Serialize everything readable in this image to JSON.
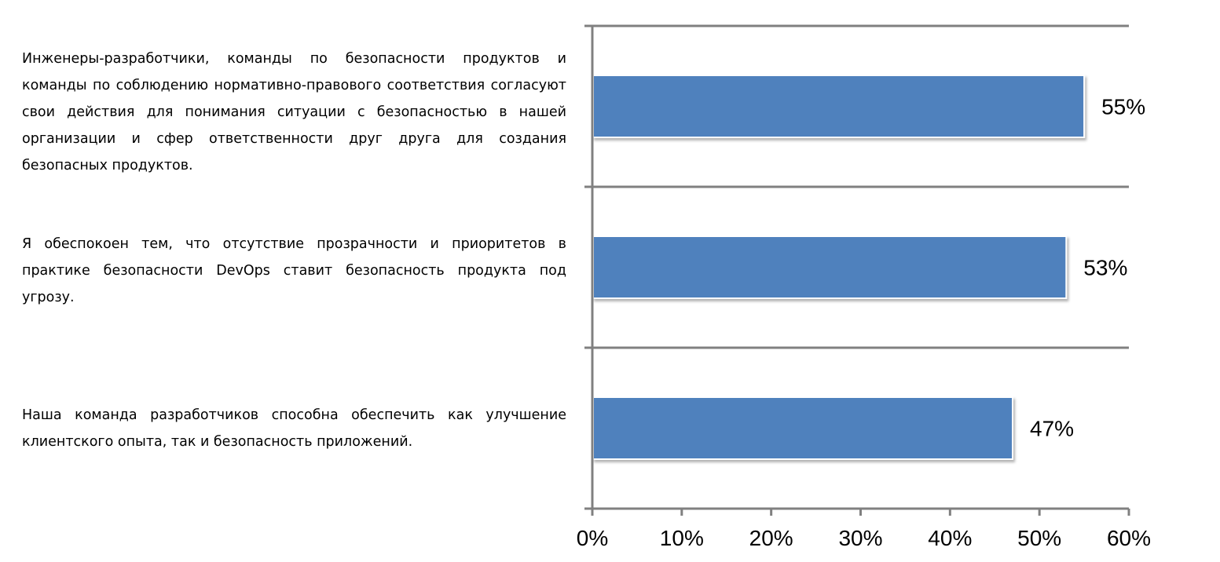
{
  "chart_data": {
    "type": "bar",
    "orientation": "horizontal",
    "categories": [
      "Инженеры-разработчики, команды по безопасности продуктов и команды по соблюдению нормативно-правового соответствия согласуют свои действия для понимания ситуации с безопасностью в нашей организации и сфер ответственности друг друга для создания безопасных продуктов.",
      "Я обеспокоен тем, что отсутствие прозрачности и приоритетов в практике безопасности DevOps ставит безопасность продукта под угрозу.",
      "Наша команда разработчиков способна обеспечить как улучшение клиентского опыта, так и безопасность приложений."
    ],
    "values": [
      55,
      53,
      47
    ],
    "data_labels": [
      "55%",
      "53%",
      "47%"
    ],
    "xlim": [
      0,
      60
    ],
    "ticks": [
      0,
      10,
      20,
      30,
      40,
      50,
      60
    ],
    "tick_labels": [
      "0%",
      "10%",
      "20%",
      "30%",
      "40%",
      "50%",
      "60%"
    ],
    "bar_color": "#4F81BD",
    "axis_color": "#808080",
    "grid": false,
    "legend": "none"
  }
}
